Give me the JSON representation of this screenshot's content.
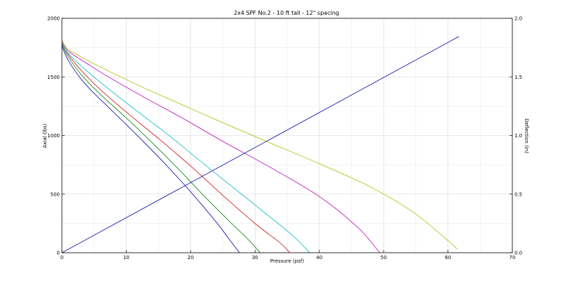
{
  "chart_data": {
    "type": "line",
    "title": "2x4 SPF No.2 - 10 ft tall - 12\" spacing",
    "xlabel": "Pressure (psf)",
    "ylabel": "Axial (lbs)",
    "y2label": "Deflection (in)",
    "xlim": [
      0,
      70
    ],
    "ylim": [
      0,
      2000
    ],
    "y2lim": [
      0,
      2.0
    ],
    "xticks": [
      "0",
      "10",
      "20",
      "30",
      "40",
      "50",
      "60",
      "70"
    ],
    "yticks": [
      "0",
      "500",
      "1000",
      "1500",
      "2000"
    ],
    "y2ticks": [
      "0.0",
      "0.5",
      "1.0",
      "1.5",
      "2.0"
    ],
    "grid": true,
    "series": [
      {
        "color": "#1f1fb4",
        "axis": "left",
        "points": [
          [
            0,
            1760
          ],
          [
            1,
            1640
          ],
          [
            3,
            1480
          ],
          [
            5,
            1360
          ],
          [
            8,
            1200
          ],
          [
            12,
            985
          ],
          [
            16,
            760
          ],
          [
            20,
            520
          ],
          [
            24,
            260
          ],
          [
            26,
            115
          ],
          [
            27.6,
            0
          ]
        ]
      },
      {
        "color": "#1a8a1a",
        "axis": "left",
        "points": [
          [
            0,
            1775
          ],
          [
            1,
            1670
          ],
          [
            3,
            1520
          ],
          [
            6,
            1350
          ],
          [
            10,
            1150
          ],
          [
            14,
            940
          ],
          [
            18,
            720
          ],
          [
            22,
            490
          ],
          [
            26,
            270
          ],
          [
            29,
            110
          ],
          [
            30.8,
            0
          ]
        ]
      },
      {
        "color": "#d42020",
        "axis": "left",
        "points": [
          [
            0,
            1785
          ],
          [
            1,
            1690
          ],
          [
            3,
            1555
          ],
          [
            6,
            1390
          ],
          [
            10,
            1200
          ],
          [
            15,
            975
          ],
          [
            20,
            740
          ],
          [
            25,
            490
          ],
          [
            30,
            250
          ],
          [
            34,
            80
          ],
          [
            35.4,
            0
          ]
        ]
      },
      {
        "color": "#20c4c4",
        "axis": "left",
        "points": [
          [
            0,
            1790
          ],
          [
            1,
            1700
          ],
          [
            4,
            1545
          ],
          [
            8,
            1365
          ],
          [
            12,
            1195
          ],
          [
            17,
            985
          ],
          [
            22,
            760
          ],
          [
            27,
            540
          ],
          [
            32,
            320
          ],
          [
            36,
            140
          ],
          [
            38.5,
            0
          ]
        ]
      },
      {
        "color": "#c020c0",
        "axis": "left",
        "points": [
          [
            0,
            1800
          ],
          [
            1,
            1720
          ],
          [
            4,
            1610
          ],
          [
            8,
            1475
          ],
          [
            13,
            1320
          ],
          [
            19,
            1140
          ],
          [
            25,
            950
          ],
          [
            32,
            740
          ],
          [
            40,
            480
          ],
          [
            46,
            215
          ],
          [
            49.4,
            0
          ]
        ]
      },
      {
        "color": "#b4c420",
        "axis": "left",
        "points": [
          [
            0,
            1810
          ],
          [
            1,
            1735
          ],
          [
            4,
            1640
          ],
          [
            8,
            1530
          ],
          [
            13,
            1400
          ],
          [
            19,
            1255
          ],
          [
            25,
            1110
          ],
          [
            32,
            945
          ],
          [
            40,
            760
          ],
          [
            48,
            560
          ],
          [
            55,
            330
          ],
          [
            61.5,
            30
          ]
        ]
      },
      {
        "color": "#1f1fb4",
        "axis": "right",
        "points": [
          [
            0,
            0
          ],
          [
            61.7,
            1.845
          ]
        ]
      }
    ]
  }
}
